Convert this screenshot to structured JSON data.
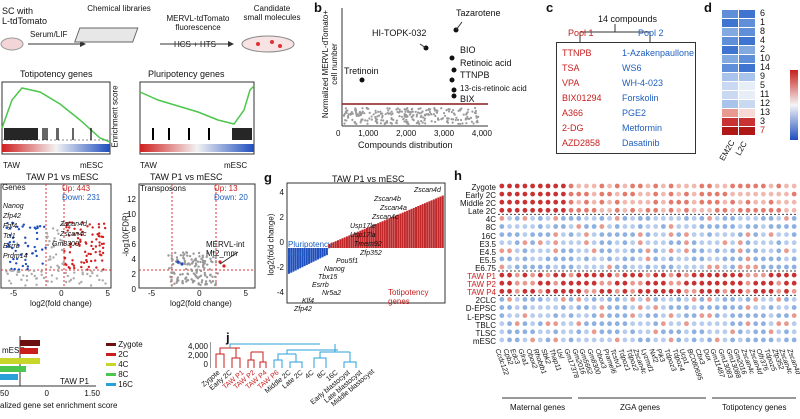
{
  "panel_b": {
    "label": "b",
    "ylabel": "Normalized MERVL-dTomato+ cell number",
    "xlabel": "Compounds distribution",
    "xticks": [
      "0",
      "1,000",
      "2,000",
      "3,000",
      "4,000"
    ],
    "annotations": [
      "HI-TOPK-032",
      "Tazarotene",
      "BIO",
      "Retinoic acid",
      "TTNPB",
      "13-cis-retinoic acid",
      "BIX",
      "Tretinoin"
    ]
  },
  "panel_c": {
    "label": "c",
    "title": "14 compounds",
    "pool1": "Pool 1",
    "pool2": "Pool 2",
    "pool1_items": [
      "TTNPB",
      "TSA",
      "VPA",
      "BIX01294",
      "A366",
      "2-DG",
      "AZD2858"
    ],
    "pool2_items": [
      "1-Azakenpaullone",
      "WS6",
      "WH-4-023",
      "Forskolin",
      "PGE2",
      "Metformin",
      "Dasatinib"
    ]
  },
  "panel_d": {
    "label": "d",
    "numbers": [
      "6",
      "1",
      "8",
      "4",
      "2",
      "10",
      "14",
      "9",
      "5",
      "11",
      "12",
      "13",
      "3",
      "7"
    ],
    "number_colors": [
      "blk",
      "blk",
      "blk",
      "blk",
      "blk",
      "blk",
      "blk",
      "blk",
      "blk",
      "blk",
      "blk",
      "blk",
      "blk",
      "red"
    ],
    "cols": [
      "EM2C",
      "L2C"
    ]
  },
  "panel_a_top": {
    "l1": "SC with",
    "l2": "L-tdTomato",
    "serum": "Serum/LIF",
    "chem": "Chemical libraries",
    "merv1": "MERVL-tdTomato",
    "merv2": "fluorescence",
    "hcs": "HCS + HTS",
    "cand1": "Candidate",
    "cand2": "small molecules"
  },
  "gsea": {
    "toti_title": "Totipotency genes",
    "pluri_title": "Pluripotency genes",
    "ylabel": "Enrichment score",
    "left": "TAW",
    "right": "mESC"
  },
  "volcano1": {
    "title": "TAW P1 vs mESC",
    "genes_label": "Genes",
    "up": "Up: 443",
    "down": "Down: 231",
    "genes": [
      "Nanog",
      "Zfp42",
      "Fgf4",
      "Tcl1",
      "Esrrb",
      "Prdm14",
      "Zscan4d",
      "Zscan4c",
      "Gm8300"
    ],
    "xlabel": "log2(fold change)",
    "xticks": [
      "-5",
      "0",
      "5"
    ]
  },
  "volcano2": {
    "title": "TAW P1 vs mESC",
    "transposons": "Transposons",
    "up": "Up: 13",
    "down": "Down: 20",
    "ann1": "MERVL-int",
    "ann2": "Mt2_mm",
    "ylabel": "-log10(FDR)",
    "xlabel": "log2(fold change)",
    "yticks": [
      "12",
      "10",
      "8",
      "6",
      "4",
      "2",
      "0"
    ],
    "xticks": [
      "-5",
      "0",
      "5"
    ]
  },
  "panel_g": {
    "label": "g",
    "title": "TAW P1 vs mESC",
    "ylabel": "log2(fold change)",
    "yticks": [
      "4",
      "2",
      "0",
      "-2",
      "-4"
    ],
    "pluri": "Pluripotency genes",
    "toti": "Totipotency genes",
    "up_genes": [
      "Zscan4d",
      "Zscan4b",
      "Zscan4a",
      "Zscan4c",
      "Usp17le",
      "Usp17la",
      "Tmem92",
      "Zfp352"
    ],
    "down_genes": [
      "Pou5f1",
      "Nanog",
      "Tbx15",
      "Esrrb",
      "Nr5a2",
      "Klf4",
      "Zfp42"
    ]
  },
  "panel_h": {
    "label": "h",
    "rows": [
      "Zygote",
      "Early 2C",
      "Middle 2C",
      "Late 2C",
      "4C",
      "8C",
      "16C",
      "E3.5",
      "E4.5",
      "E5.5",
      "E6.75",
      "TAW P1",
      "TAW P2",
      "TAW P4",
      "2CLC",
      "D-EPSC",
      "L-EPSC",
      "TBLC",
      "TLSC",
      "mESC"
    ],
    "genes": [
      "Ccdc122",
      "Cpb2",
      "Edc3",
      "Gfra1",
      "Obox2",
      "Rhobtb1",
      "Sbk2",
      "Thap11",
      "Usl",
      "Gm17378",
      "Gm2016",
      "Gm5662",
      "Gm8300",
      "Obox3",
      "Pramel6",
      "Tcstv1",
      "Tdpoz1",
      "Tdpoz2",
      "Zscan4c",
      "Lyzmd1",
      "Nxf2",
      "Pik3",
      "Tdpoz3",
      "Tdpoz4",
      "Ucp1",
      "BC080695",
      "Cbx3",
      "Dux",
      "Gm11487",
      "Gm13083",
      "Gm13088",
      "Gm2016",
      "Zscan4c",
      "Zscan4d",
      "Olfr376",
      "Tdpoz5",
      "Zfp352",
      "Zscan4c",
      "Zscan4d"
    ],
    "groups": [
      "Maternal genes",
      "ZGA genes",
      "Totipotency genes"
    ]
  },
  "bottom_left": {
    "mesc": "mESC",
    "tawp1": "TAW P1",
    "legend": [
      "Zygote",
      "2C",
      "4C",
      "8C",
      "16C"
    ],
    "xlabel": "alized gene set enrichment score",
    "ticks": [
      "50",
      "0",
      "1.50"
    ]
  },
  "panel_j": {
    "label": "j",
    "yticks": [
      "4,000",
      "2,000",
      "0"
    ],
    "leaves": [
      "Zygote",
      "Early 2C",
      "TAW P1",
      "TAW P2",
      "TAW P4",
      "TAW P6",
      "Middle 2C",
      "Late 2C",
      "4C",
      "8C",
      "16C",
      "Early blastocyst",
      "Late blastocyst",
      "Middle blastocyst"
    ],
    "leaf_colors": [
      "blk",
      "blk",
      "red",
      "red",
      "red",
      "red",
      "blk",
      "blk",
      "blk",
      "blk",
      "blk",
      "blk",
      "blk",
      "blk"
    ]
  },
  "colors": {
    "red": "#c81e1e",
    "blue": "#1f5fbf",
    "green": "#4cc64c",
    "dkred": "#8b1a1a"
  }
}
